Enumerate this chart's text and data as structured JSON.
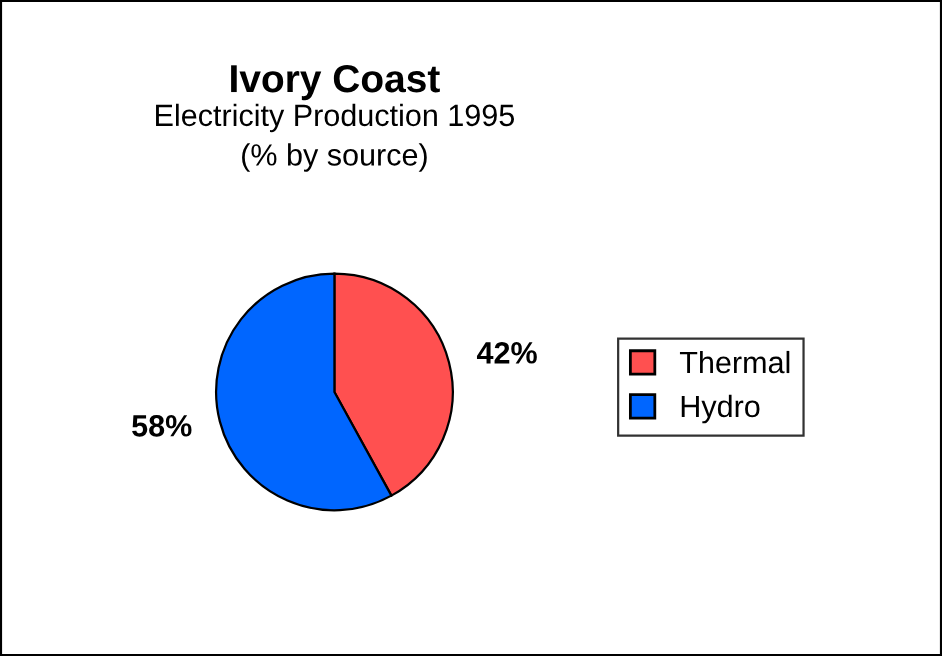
{
  "chart_data": {
    "type": "pie",
    "title": "Ivory Coast",
    "subtitle": "Electricity Production 1995\n(% by source)",
    "categories": [
      "Thermal",
      "Hydro"
    ],
    "values": [
      42,
      58
    ],
    "colors": [
      "#ff5050",
      "#0066ff"
    ],
    "value_labels": [
      "42%",
      "58%"
    ],
    "legend": "right"
  }
}
